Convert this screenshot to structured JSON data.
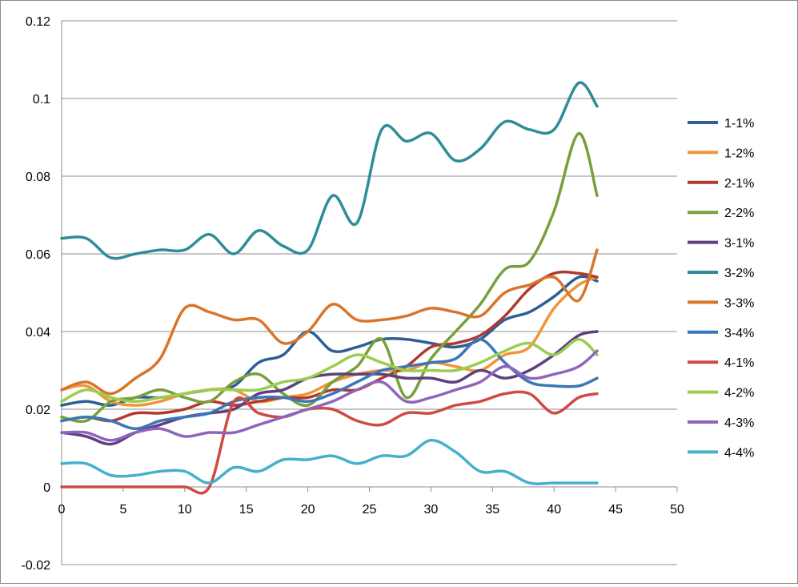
{
  "chart_data": {
    "type": "line",
    "xlim": [
      0,
      50
    ],
    "ylim": [
      -0.02,
      0.12
    ],
    "x_ticks": [
      "0",
      "5",
      "10",
      "15",
      "20",
      "25",
      "30",
      "35",
      "40",
      "45",
      "50"
    ],
    "y_ticks": [
      "-0.02",
      "0",
      "0.02",
      "0.04",
      "0.06",
      "0.08",
      "0.1",
      "0.12"
    ],
    "grid": "horizontal",
    "legend": "right",
    "x": [
      0,
      2,
      4,
      6,
      8,
      10,
      12,
      14,
      16,
      18,
      20,
      22,
      24,
      26,
      28,
      30,
      32,
      34,
      36,
      38,
      40,
      42,
      43.5
    ],
    "series": [
      {
        "name": "1-1%",
        "color": "#2c5f94",
        "values": [
          0.021,
          0.022,
          0.021,
          0.023,
          0.023,
          0.024,
          0.025,
          0.026,
          0.032,
          0.034,
          0.04,
          0.035,
          0.036,
          0.038,
          0.038,
          0.037,
          0.036,
          0.038,
          0.043,
          0.045,
          0.049,
          0.054,
          0.053
        ]
      },
      {
        "name": "1-2%",
        "color": "#f0953b",
        "values": [
          0.025,
          0.026,
          0.022,
          0.021,
          0.022,
          0.024,
          0.025,
          0.025,
          0.022,
          0.023,
          0.024,
          0.027,
          0.029,
          0.03,
          0.03,
          0.032,
          0.031,
          0.03,
          0.034,
          0.036,
          0.046,
          0.052,
          0.054
        ]
      },
      {
        "name": "2-1%",
        "color": "#b03a2e",
        "values": [
          0.017,
          0.018,
          0.017,
          0.019,
          0.019,
          0.02,
          0.022,
          0.021,
          0.022,
          0.023,
          0.023,
          0.025,
          0.025,
          0.028,
          0.031,
          0.036,
          0.037,
          0.039,
          0.044,
          0.051,
          0.055,
          0.055,
          0.054
        ]
      },
      {
        "name": "2-2%",
        "color": "#77a03b",
        "values": [
          0.018,
          0.017,
          0.022,
          0.023,
          0.025,
          0.023,
          0.022,
          0.027,
          0.029,
          0.024,
          0.021,
          0.027,
          0.031,
          0.038,
          0.023,
          0.033,
          0.04,
          0.047,
          0.056,
          0.058,
          0.071,
          0.091,
          0.075
        ]
      },
      {
        "name": "3-1%",
        "color": "#5f3f80",
        "values": [
          0.014,
          0.013,
          0.011,
          0.014,
          0.016,
          0.018,
          0.019,
          0.02,
          0.024,
          0.025,
          0.028,
          0.029,
          0.029,
          0.029,
          0.028,
          0.028,
          0.027,
          0.03,
          0.028,
          0.03,
          0.034,
          0.039,
          0.04
        ]
      },
      {
        "name": "3-2%",
        "color": "#2f8c99",
        "values": [
          0.064,
          0.064,
          0.059,
          0.06,
          0.061,
          0.061,
          0.065,
          0.06,
          0.066,
          0.062,
          0.061,
          0.075,
          0.068,
          0.092,
          0.089,
          0.091,
          0.084,
          0.087,
          0.094,
          0.092,
          0.092,
          0.104,
          0.098
        ]
      },
      {
        "name": "3-3%",
        "color": "#d9742b",
        "values": [
          0.025,
          0.027,
          0.024,
          0.028,
          0.033,
          0.046,
          0.045,
          0.043,
          0.043,
          0.037,
          0.04,
          0.047,
          0.043,
          0.043,
          0.044,
          0.046,
          0.045,
          0.044,
          0.05,
          0.052,
          0.054,
          0.048,
          0.061
        ]
      },
      {
        "name": "3-4%",
        "color": "#3a76b8",
        "values": [
          0.017,
          0.018,
          0.017,
          0.015,
          0.017,
          0.018,
          0.019,
          0.022,
          0.023,
          0.023,
          0.022,
          0.024,
          0.027,
          0.03,
          0.031,
          0.032,
          0.033,
          0.038,
          0.032,
          0.027,
          0.026,
          0.026,
          0.028
        ]
      },
      {
        "name": "4-1%",
        "color": "#cf4a44",
        "values": [
          0.0,
          0.0,
          0.0,
          0.0,
          0.0,
          0.0,
          0.0,
          0.022,
          0.019,
          0.018,
          0.02,
          0.02,
          0.017,
          0.016,
          0.019,
          0.019,
          0.021,
          0.022,
          0.024,
          0.024,
          0.019,
          0.023,
          0.024
        ]
      },
      {
        "name": "4-2%",
        "color": "#9acd50",
        "values": [
          0.022,
          0.025,
          0.023,
          0.022,
          0.023,
          0.024,
          0.025,
          0.025,
          0.025,
          0.027,
          0.028,
          0.031,
          0.034,
          0.032,
          0.03,
          0.03,
          0.03,
          0.032,
          0.035,
          0.037,
          0.034,
          0.038,
          0.034
        ]
      },
      {
        "name": "4-3%",
        "color": "#8e65ba",
        "values": [
          0.014,
          0.014,
          0.012,
          0.014,
          0.015,
          0.013,
          0.014,
          0.014,
          0.016,
          0.018,
          0.02,
          0.022,
          0.025,
          0.027,
          0.022,
          0.023,
          0.025,
          0.027,
          0.031,
          0.028,
          0.029,
          0.031,
          0.035
        ]
      },
      {
        "name": "4-4%",
        "color": "#46b0cc",
        "values": [
          0.006,
          0.006,
          0.003,
          0.003,
          0.004,
          0.004,
          0.001,
          0.005,
          0.004,
          0.007,
          0.007,
          0.008,
          0.006,
          0.008,
          0.008,
          0.012,
          0.009,
          0.004,
          0.004,
          0.001,
          0.001,
          0.001,
          0.001
        ]
      }
    ]
  }
}
